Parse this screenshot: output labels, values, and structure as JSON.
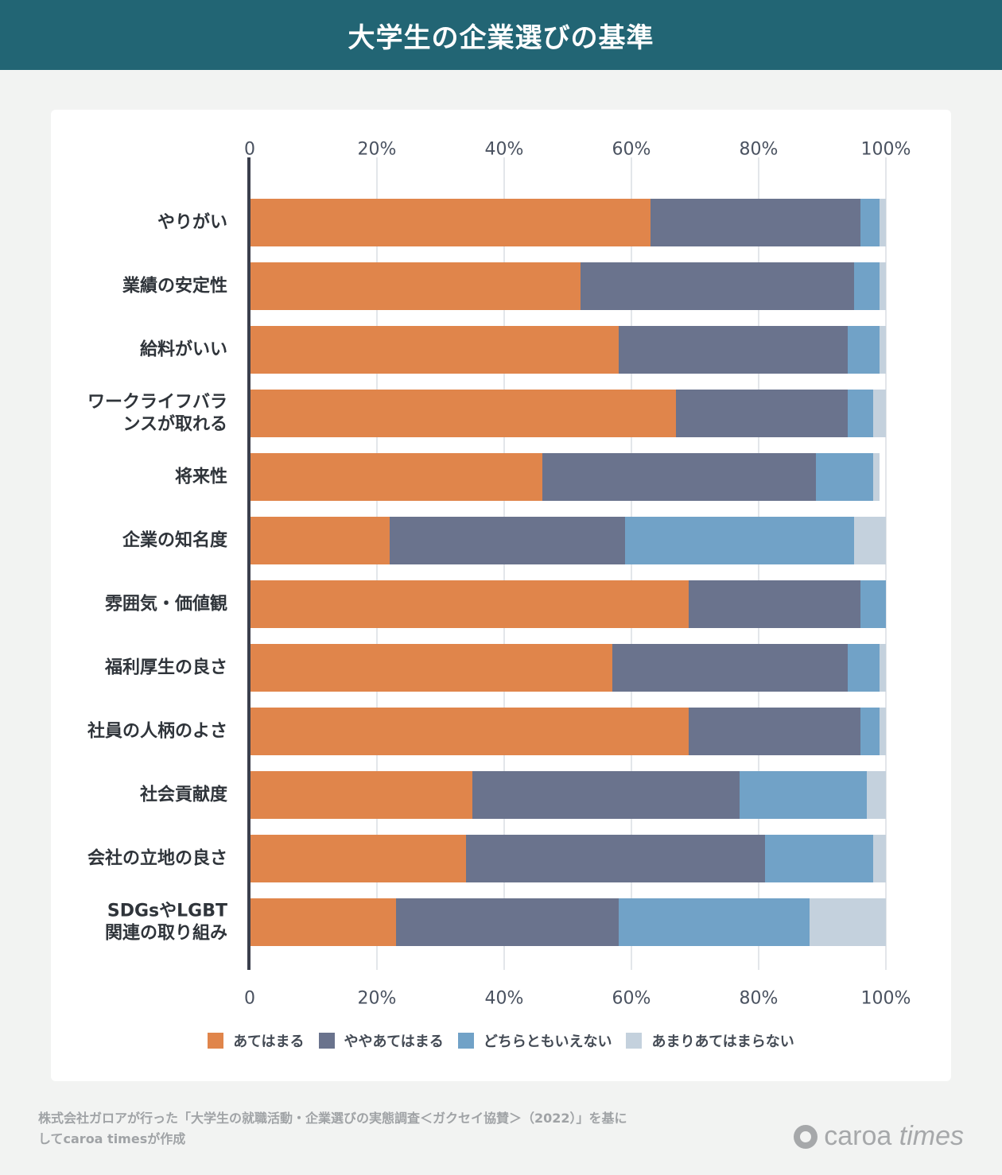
{
  "header": {
    "title": "大学生の企業選びの基準"
  },
  "chart_data": {
    "type": "bar",
    "orientation": "horizontal",
    "stacked": true,
    "categories": [
      "やりがい",
      "業績の安定性",
      "給料がいい",
      "ワークライフバランスが取れる",
      "将来性",
      "企業の知名度",
      "雰囲気・価値観",
      "福利厚生の良さ",
      "社員の人柄のよさ",
      "社会貢献度",
      "会社の立地の良さ",
      "SDGsやLGBT関連の取り組み"
    ],
    "category_label_lines": [
      [
        "やりがい"
      ],
      [
        "業績の安定性"
      ],
      [
        "給料がいい"
      ],
      [
        "ワークライフバラ",
        "ンスが取れる"
      ],
      [
        "将来性"
      ],
      [
        "企業の知名度"
      ],
      [
        "雰囲気・価値観"
      ],
      [
        "福利厚生の良さ"
      ],
      [
        "社員の人柄のよさ"
      ],
      [
        "社会貢献度"
      ],
      [
        "会社の立地の良さ"
      ],
      [
        "SDGsやLGBT",
        "関連の取り組み"
      ]
    ],
    "series": [
      {
        "name": "あてはまる",
        "color": "#e0854b",
        "values": [
          63,
          52,
          58,
          67,
          46,
          22,
          69,
          57,
          69,
          35,
          34,
          23
        ]
      },
      {
        "name": "ややあてはまる",
        "color": "#6a738d",
        "values": [
          33,
          43,
          36,
          27,
          43,
          37,
          27,
          37,
          27,
          42,
          47,
          35
        ]
      },
      {
        "name": "どちらともいえない",
        "color": "#71a2c7",
        "values": [
          3,
          4,
          5,
          4,
          9,
          36,
          4,
          5,
          3,
          20,
          17,
          30
        ]
      },
      {
        "name": "あまりあてはまらない",
        "color": "#c4d1dd",
        "values": [
          1,
          1,
          1,
          2,
          1,
          5,
          0,
          1,
          1,
          3,
          2,
          12
        ]
      }
    ],
    "x_ticks": [
      "0",
      "20%",
      "40%",
      "60%",
      "80%",
      "100%"
    ],
    "xlim": [
      0,
      100
    ],
    "grid": true,
    "legend": "bottom"
  },
  "footer": {
    "note_line1": "株式会社ガロアが行った「大学生の就職活動・企業選びの実態調査＜ガクセイ協賛＞（2022）」を基に",
    "note_line2": "してcaroa timesが作成",
    "brand_part1": "caroa ",
    "brand_part2": "times"
  }
}
